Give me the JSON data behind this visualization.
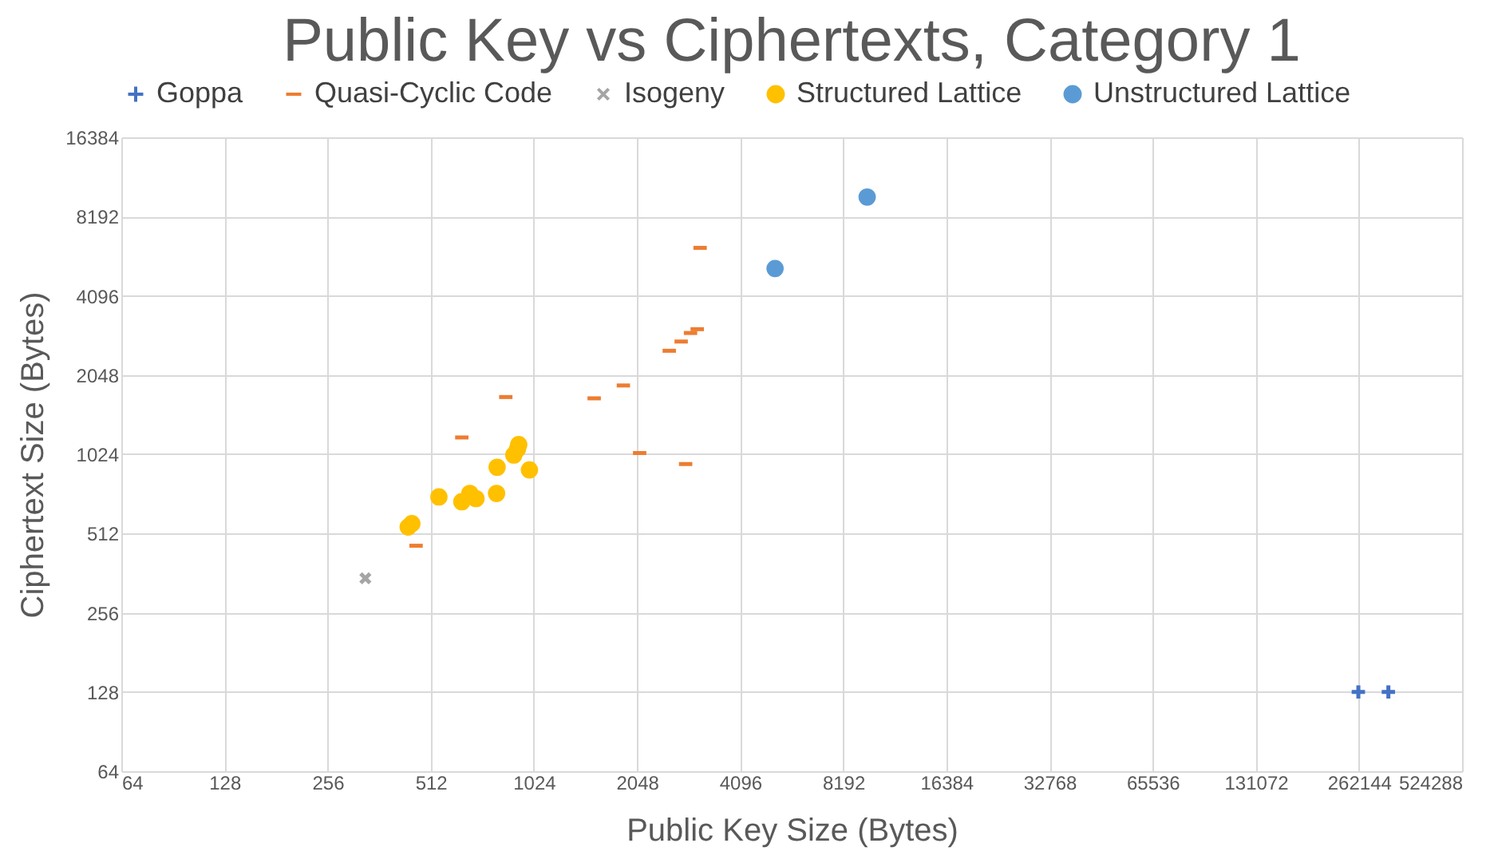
{
  "chart_data": {
    "type": "scatter",
    "title": "Public Key vs Ciphertexts, Category 1",
    "xlabel": "Public Key Size (Bytes)",
    "ylabel": "Ciphertext Size (Bytes)",
    "log": "xy",
    "grid": true,
    "legend": "top",
    "xlim": [
      64,
      524288
    ],
    "xticks": [
      64,
      128,
      256,
      512,
      1024,
      2048,
      4096,
      8192,
      16384,
      32768,
      65536,
      131072,
      262144,
      524288
    ],
    "ylim": [
      64,
      16384
    ],
    "yticks": [
      64,
      128,
      256,
      512,
      1024,
      2048,
      4096,
      8192,
      16384
    ],
    "series": [
      {
        "name": "Goppa",
        "color": "#4472c4",
        "marker": "cross",
        "x": [
          261120,
          319488
        ],
        "values": [
          128,
          128
        ]
      },
      {
        "name": "Quasi-Cyclic Code",
        "color": "#ed7d31",
        "x": [
          3130,
          3070,
          2935,
          2756,
          2544,
          1869,
          1536,
          848,
          631,
          2085,
          2840,
          464
        ],
        "values": [
          6230,
          3058,
          2958,
          2745,
          2532,
          1869,
          1670,
          1689,
          1186,
          1035,
          940,
          460
        ]
      },
      {
        "name": "Isogeny",
        "color": "#a5a5a5",
        "marker": "x",
        "x": [
          330
        ],
        "values": [
          346
        ]
      },
      {
        "name": "Structured Lattice",
        "color": "#ffc000",
        "marker": "circle",
        "x": [
          451,
          440,
          541,
          631,
          666,
          694,
          797,
          800,
          895,
          925,
          917,
          994
        ],
        "values": [
          558,
          542,
          705,
          676,
          727,
          695,
          727,
          914,
          1017,
          1114,
          1071,
          893
        ]
      },
      {
        "name": "Unstructured Lattice",
        "color": "#5b9bd5",
        "marker": "circle",
        "x": [
          9620,
          5180
        ],
        "values": [
          9720,
          5200
        ]
      }
    ]
  }
}
